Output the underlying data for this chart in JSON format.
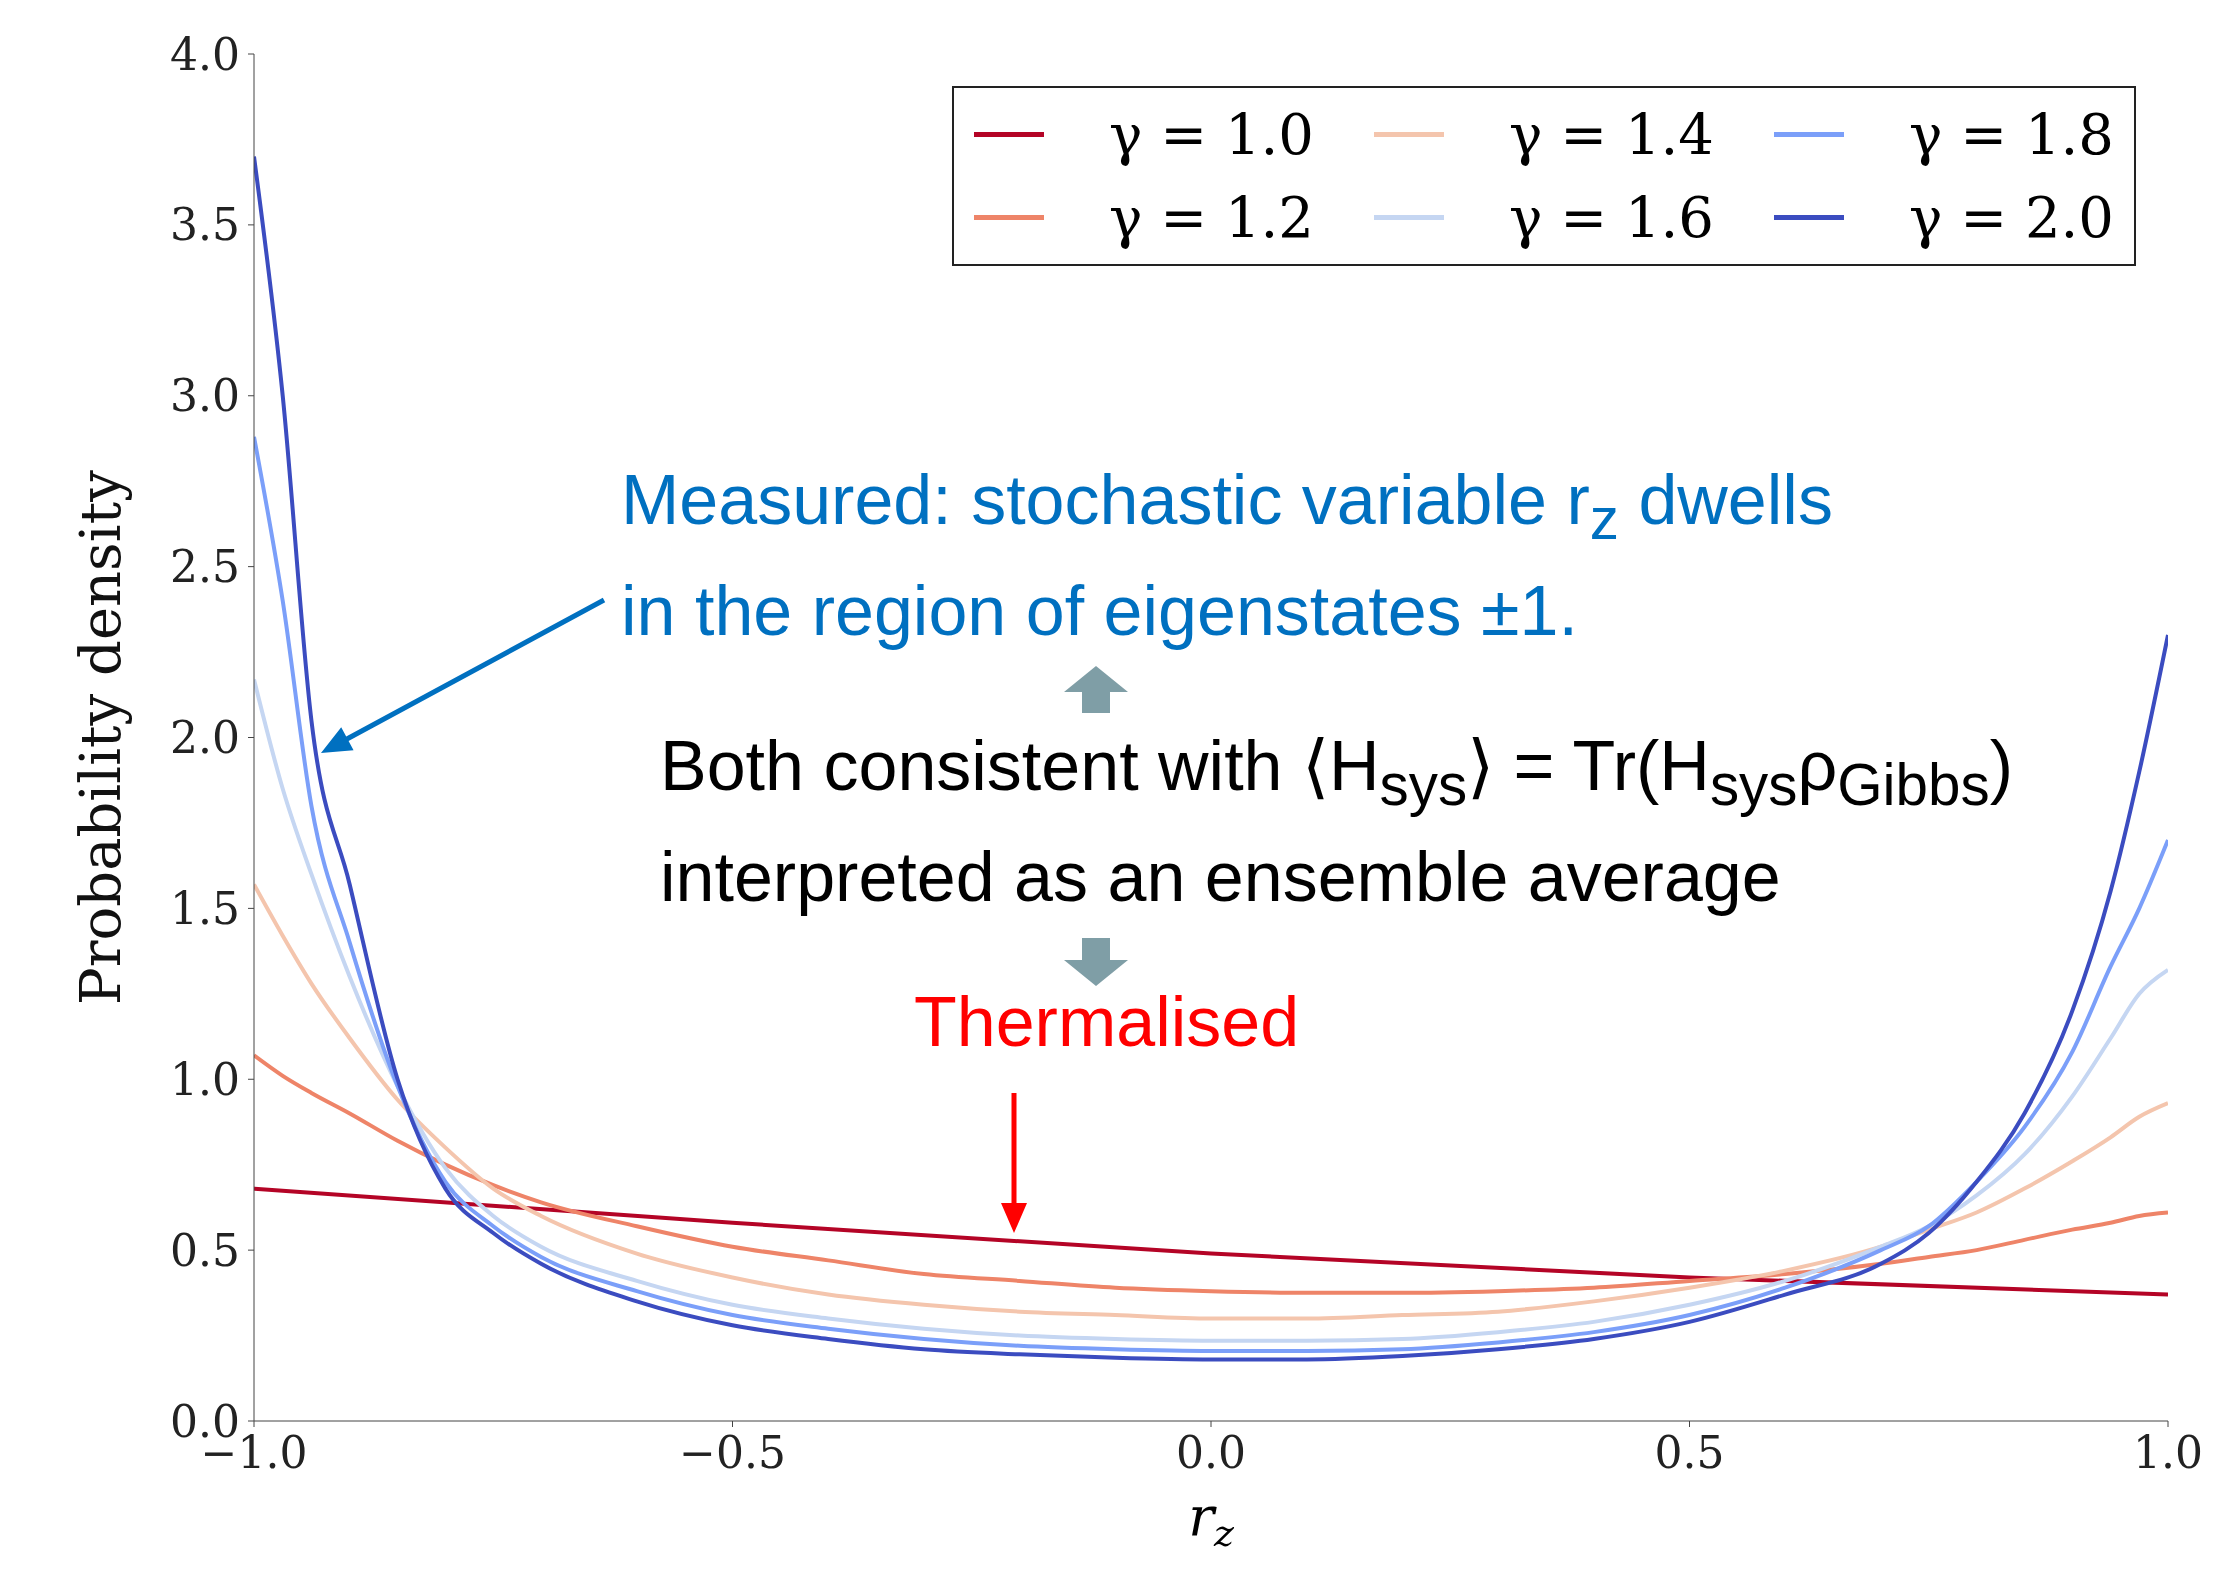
{
  "chart_data": {
    "type": "line",
    "xlabel": "r$_{z}$",
    "ylabel": "Probability density",
    "xlim": [
      -1,
      1
    ],
    "ylim": [
      0,
      4
    ],
    "xticks": [
      {
        "value": -1,
        "label": "−1.0"
      },
      {
        "value": -0.5,
        "label": "−0.5"
      },
      {
        "value": 0,
        "label": "0.0"
      },
      {
        "value": 0.5,
        "label": "0.5"
      },
      {
        "value": 1,
        "label": "1.0"
      }
    ],
    "yticks": [
      {
        "value": 0,
        "label": "0.0"
      },
      {
        "value": 0.5,
        "label": "0.5"
      },
      {
        "value": 1,
        "label": "1.0"
      },
      {
        "value": 1.5,
        "label": "1.5"
      },
      {
        "value": 2,
        "label": "2.0"
      },
      {
        "value": 2.5,
        "label": "2.5"
      },
      {
        "value": 3,
        "label": "3.0"
      },
      {
        "value": 3.5,
        "label": "3.5"
      },
      {
        "value": 4,
        "label": "4.0"
      }
    ],
    "x": [
      -1,
      -0.97,
      -0.94,
      -0.9,
      -0.85,
      -0.8,
      -0.75,
      -0.7,
      -0.6,
      -0.5,
      -0.4,
      -0.3,
      -0.2,
      -0.1,
      0,
      0.1,
      0.2,
      0.3,
      0.4,
      0.5,
      0.6,
      0.7,
      0.75,
      0.8,
      0.85,
      0.9,
      0.94,
      0.97,
      1
    ],
    "series": [
      {
        "name": "γ = 1.0",
        "color": "#b40426",
        "x": [
          -1,
          -0.5,
          0,
          0.5,
          1
        ],
        "values": [
          0.68,
          0.58,
          0.49,
          0.42,
          0.37
        ]
      },
      {
        "name": "γ = 1.2",
        "color": "#ee8468",
        "values": [
          1.07,
          1.01,
          0.96,
          0.9,
          0.82,
          0.75,
          0.69,
          0.64,
          0.57,
          0.51,
          0.47,
          0.43,
          0.41,
          0.39,
          0.38,
          0.375,
          0.375,
          0.38,
          0.39,
          0.41,
          0.43,
          0.46,
          0.48,
          0.5,
          0.53,
          0.56,
          0.58,
          0.6,
          0.61
        ]
      },
      {
        "name": "γ = 1.4",
        "color": "#f4c5ad",
        "values": [
          1.57,
          1.42,
          1.28,
          1.12,
          0.94,
          0.8,
          0.68,
          0.6,
          0.49,
          0.42,
          0.37,
          0.34,
          0.32,
          0.31,
          0.3,
          0.3,
          0.31,
          0.32,
          0.35,
          0.39,
          0.44,
          0.51,
          0.56,
          0.61,
          0.68,
          0.76,
          0.83,
          0.89,
          0.93
        ]
      },
      {
        "name": "γ = 1.6",
        "color": "#c5d6f2",
        "values": [
          2.17,
          1.85,
          1.6,
          1.3,
          0.98,
          0.74,
          0.6,
          0.51,
          0.41,
          0.34,
          0.3,
          0.27,
          0.25,
          0.24,
          0.235,
          0.235,
          0.24,
          0.26,
          0.29,
          0.34,
          0.41,
          0.51,
          0.57,
          0.66,
          0.78,
          0.95,
          1.12,
          1.25,
          1.32
        ]
      },
      {
        "name": "γ = 1.8",
        "color": "#7b9ff9",
        "values": [
          2.88,
          2.4,
          1.8,
          1.4,
          0.98,
          0.7,
          0.57,
          0.48,
          0.38,
          0.31,
          0.27,
          0.24,
          0.22,
          0.21,
          0.205,
          0.205,
          0.21,
          0.23,
          0.26,
          0.31,
          0.39,
          0.5,
          0.57,
          0.7,
          0.86,
          1.08,
          1.33,
          1.5,
          1.7
        ]
      },
      {
        "name": "γ = 2.0",
        "color": "#3b4cc0",
        "values": [
          3.7,
          3.0,
          2.05,
          1.57,
          1.0,
          0.68,
          0.55,
          0.46,
          0.35,
          0.28,
          0.24,
          0.21,
          0.195,
          0.185,
          0.18,
          0.18,
          0.19,
          0.21,
          0.24,
          0.29,
          0.37,
          0.46,
          0.55,
          0.7,
          0.9,
          1.2,
          1.55,
          1.9,
          2.3
        ]
      }
    ],
    "annotations": [
      "Measured: stochastic variable r$_{z}$ dwells in the region of eigenstates ±1.",
      "Both consistent with ⟨H$_{sys}$⟩ = Tr(H$_{sys}$ρ$_{Gibbs}$) interpreted as an ensemble average",
      "Thermalised"
    ],
    "legend": "top right",
    "grid": false,
    "marker": "none",
    "line_style": "solid"
  }
}
